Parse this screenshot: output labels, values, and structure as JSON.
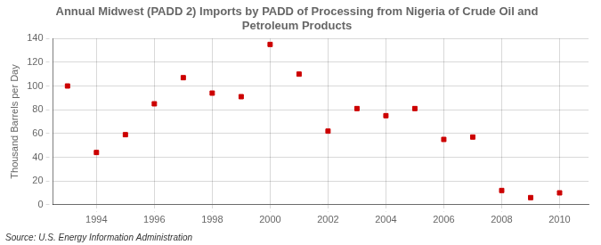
{
  "chart_data": {
    "type": "scatter",
    "title": "Annual Midwest (PADD 2) Imports by PADD of Processing from Nigeria of Crude Oil and\nPetroleum Products",
    "ylabel": "Thousand Barrels per Day",
    "annotations": [
      "Source: U.S. Energy Information Administration"
    ],
    "x": [
      1993,
      1994,
      1995,
      1996,
      1997,
      1998,
      1999,
      2000,
      2001,
      2002,
      2003,
      2004,
      2005,
      2006,
      2007,
      2008,
      2009,
      2010
    ],
    "values": [
      100,
      44,
      59,
      85,
      107,
      94,
      91,
      135,
      110,
      62,
      81,
      75,
      81,
      55,
      57,
      12,
      6,
      10
    ],
    "color": "#cc0000",
    "marker": "square",
    "xlim": [
      1992.5,
      2011.0
    ],
    "xticks": [
      1994,
      1996,
      1998,
      2000,
      2002,
      2004,
      2006,
      2008,
      2010
    ],
    "ylim": [
      0,
      140
    ],
    "yticks": [
      0,
      20,
      40,
      60,
      80,
      100,
      120,
      140
    ],
    "grid": true
  }
}
